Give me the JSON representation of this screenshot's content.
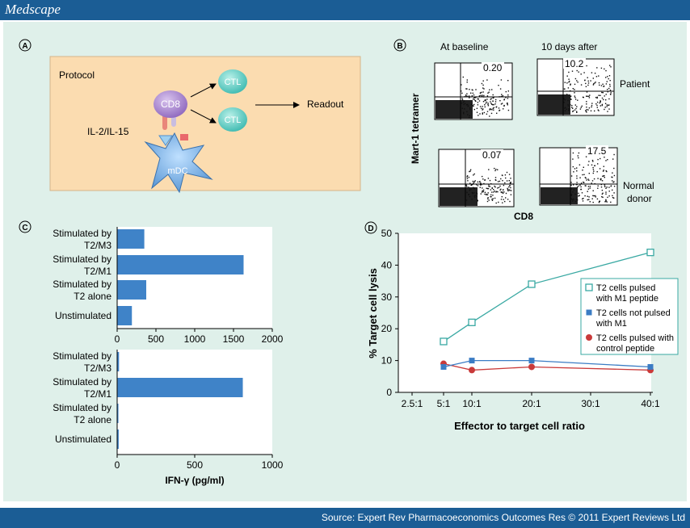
{
  "brand": "Medscape",
  "source": "Source: Expert Rev Pharmacoeconomics Outcomes Res © 2011 Expert Reviews Ltd",
  "colors": {
    "header": "#1b5d95",
    "panel": "#dff0ea",
    "protocol_box": "#fbdcb0",
    "bar": "#3f83c8",
    "teal": "#3aa9a3",
    "blue": "#3b7cc4",
    "red": "#c93a3a"
  },
  "panel_a": {
    "letter": "A",
    "protocol": "Protocol",
    "cytokines": "IL-2/IL-15",
    "cd8": "CD8",
    "ctl1": "CTL",
    "ctl2": "CTL",
    "readout": "Readout",
    "mdc": "mDC"
  },
  "panel_b": {
    "letter": "B",
    "col1": "At baseline",
    "col2": "10 days after",
    "row1": "Patient",
    "row2a": "Normal",
    "row2b": "donor",
    "ylabel": "Mart-1 tetramer",
    "xlabel": "CD8",
    "values": [
      "0.20",
      "10.2",
      "0.07",
      "17.5"
    ]
  },
  "panel_c": {
    "letter": "C"
  },
  "panel_d": {
    "letter": "D"
  },
  "chart_data": [
    {
      "type": "bar",
      "orientation": "horizontal",
      "categories": [
        "Stimulated by T2/M3",
        "Stimulated by T2/M1",
        "Stimulated by T2 alone",
        "Unstimulated"
      ],
      "labels": [
        [
          "Stimulated by",
          "T2/M3"
        ],
        [
          "Stimulated by",
          "T2/M1"
        ],
        [
          "Stimulated by",
          "T2 alone"
        ],
        [
          "Unstimulated"
        ]
      ],
      "values": [
        350,
        1630,
        375,
        190
      ],
      "xlim": [
        0,
        2000
      ],
      "xticks": [
        "0",
        "500",
        "1000",
        "1500",
        "2000"
      ],
      "xlabel": ""
    },
    {
      "type": "bar",
      "orientation": "horizontal",
      "categories": [
        "Stimulated by T2/M3",
        "Stimulated by T2/M1",
        "Stimulated by T2 alone",
        "Unstimulated"
      ],
      "labels": [
        [
          "Stimulated by",
          "T2/M3"
        ],
        [
          "Stimulated by",
          "T2/M1"
        ],
        [
          "Stimulated by",
          "T2 alone"
        ],
        [
          "Unstimulated"
        ]
      ],
      "values": [
        12,
        810,
        8,
        10
      ],
      "xlim": [
        0,
        1000
      ],
      "xticks": [
        "0",
        "500",
        "1000"
      ],
      "xlabel": "IFN-γ (pg/ml)"
    },
    {
      "type": "line",
      "x": [
        "5:1",
        "10:1",
        "20:1",
        "40:1"
      ],
      "xticks": [
        "2.5:1",
        "5:1",
        "10:1",
        "20:1",
        "30:1",
        "40:1"
      ],
      "ylim": [
        0,
        50
      ],
      "yticks": [
        "0",
        "10",
        "20",
        "30",
        "40",
        "50"
      ],
      "xlabel": "Effector to target cell ratio",
      "ylabel": "% Target cell lysis",
      "legend_position": "right",
      "series": [
        {
          "name": "T2 cells pulsed with M1 peptide",
          "legend": [
            "T2 cells pulsed",
            "with M1 peptide"
          ],
          "marker": "open-square",
          "color": "#3aa9a3",
          "values": [
            16,
            22,
            34,
            44
          ]
        },
        {
          "name": "T2 cells not pulsed with M1",
          "legend": [
            "T2 cells not pulsed",
            "with M1"
          ],
          "marker": "filled-square",
          "color": "#3b7cc4",
          "values": [
            8,
            10,
            10,
            8
          ]
        },
        {
          "name": "T2 cells pulsed with control peptide",
          "legend": [
            "T2 cells pulsed with",
            "control peptide"
          ],
          "marker": "filled-circle",
          "color": "#c93a3a",
          "values": [
            9,
            7,
            8,
            7
          ]
        }
      ]
    }
  ]
}
